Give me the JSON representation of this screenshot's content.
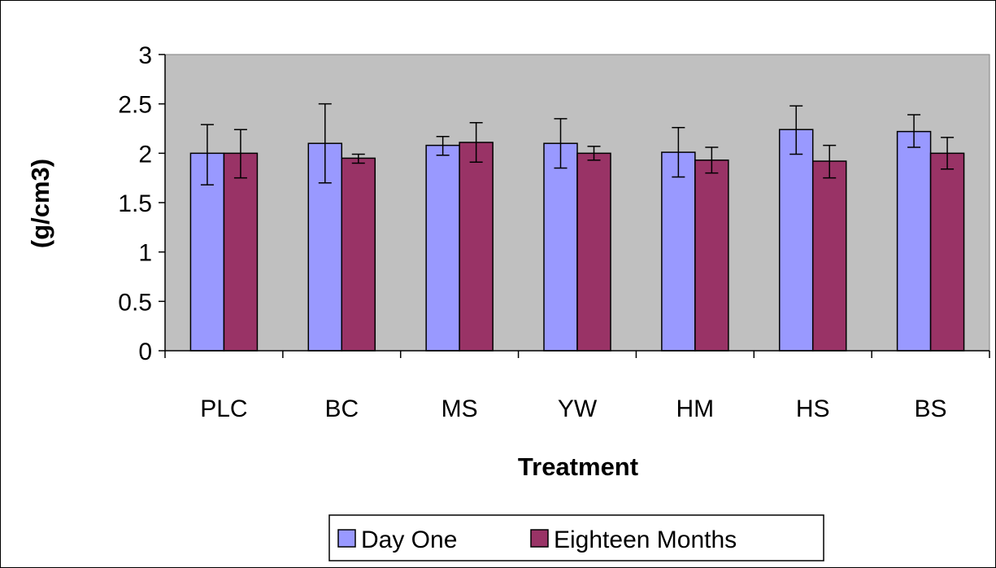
{
  "chart_data": {
    "type": "bar",
    "title": "",
    "xlabel": "Treatment",
    "ylabel": "(g/cm3)",
    "ylim": [
      0,
      3
    ],
    "yticks": [
      "0",
      "0.5",
      "1",
      "1.5",
      "2",
      "2.5",
      "3"
    ],
    "grid": false,
    "legend_position": "bottom",
    "categories": [
      "PLC",
      "BC",
      "MS",
      "YW",
      "HM",
      "HS",
      "BS"
    ],
    "series": [
      {
        "name": "Day One",
        "color": "#9999ff",
        "values": [
          2.0,
          2.1,
          2.08,
          2.1,
          2.01,
          2.24,
          2.22
        ],
        "error_low": [
          1.68,
          1.7,
          1.98,
          1.85,
          1.76,
          1.99,
          2.06
        ],
        "error_high": [
          2.29,
          2.5,
          2.17,
          2.35,
          2.26,
          2.48,
          2.39
        ]
      },
      {
        "name": "Eighteen Months",
        "color": "#993366",
        "values": [
          2.0,
          1.95,
          2.11,
          2.0,
          1.93,
          1.92,
          2.0
        ],
        "error_low": [
          1.75,
          1.9,
          1.91,
          1.93,
          1.8,
          1.75,
          1.84
        ],
        "error_high": [
          2.24,
          1.99,
          2.31,
          2.07,
          2.06,
          2.08,
          2.16
        ]
      }
    ],
    "plot_background": "#c0c0c0"
  }
}
